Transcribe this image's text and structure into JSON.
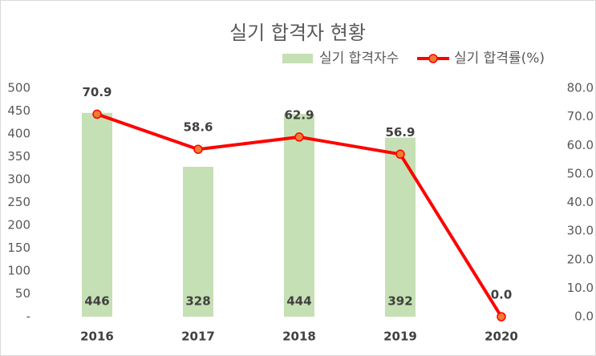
{
  "chart_data": {
    "type": "combo",
    "title": "실기 합격자 현황",
    "categories": [
      "2016",
      "2017",
      "2018",
      "2019",
      "2020"
    ],
    "series": [
      {
        "name": "실기 합격자수",
        "type": "bar",
        "color": "#c5e0b4",
        "values": [
          446,
          328,
          444,
          392,
          null
        ]
      },
      {
        "name": "실기 합격률(%)",
        "type": "line",
        "axis": "y2",
        "color": "#ff0000",
        "marker_color": "#ed7d31",
        "values": [
          70.9,
          58.6,
          62.9,
          56.9,
          0.0
        ],
        "value_labels": [
          "70.9",
          "58.6",
          "62.9",
          "56.9",
          "0.0"
        ]
      }
    ],
    "ylim": [
      0,
      500
    ],
    "yticks": [
      {
        "value": 0,
        "label": "-"
      },
      50,
      100,
      150,
      200,
      250,
      300,
      350,
      400,
      450,
      500
    ],
    "y2lim": [
      0,
      80
    ],
    "y2ticks": [
      {
        "value": 0,
        "label": "0.0"
      },
      {
        "value": 10,
        "label": "10.0"
      },
      {
        "value": 20,
        "label": "20.0"
      },
      {
        "value": 30,
        "label": "30.0"
      },
      {
        "value": 40,
        "label": "40.0"
      },
      {
        "value": 50,
        "label": "50.0"
      },
      {
        "value": 60,
        "label": "60.0"
      },
      {
        "value": 70,
        "label": "70.0"
      },
      {
        "value": 80,
        "label": "80.0"
      }
    ],
    "grid": false,
    "legend": "top"
  }
}
